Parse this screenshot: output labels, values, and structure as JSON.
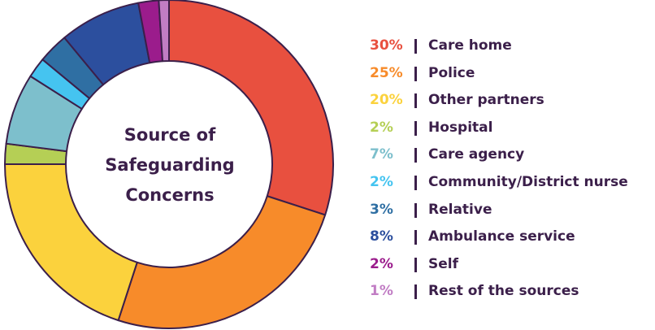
{
  "chart_data": {
    "type": "pie",
    "title_lines": [
      "Source of",
      "Safeguarding",
      "Concerns"
    ],
    "categories": [
      "Care home",
      "Police",
      "Other partners",
      "Hospital",
      "Care agency",
      "Community/District nurse",
      "Relative",
      "Ambulance service",
      "Self",
      "Rest of the sources"
    ],
    "values": [
      30,
      25,
      20,
      2,
      7,
      2,
      3,
      8,
      2,
      1
    ],
    "value_labels": [
      "30%",
      "25%",
      "20%",
      "2%",
      "7%",
      "2%",
      "3%",
      "8%",
      "2%",
      "1%"
    ],
    "colors": [
      "#e8503f",
      "#f78b2a",
      "#fbd23d",
      "#b5cf55",
      "#7dbfcc",
      "#45c4f0",
      "#2f6fa3",
      "#2c4f9e",
      "#9b1c8c",
      "#c17dc4"
    ],
    "legend_position": "right",
    "donut": true
  }
}
